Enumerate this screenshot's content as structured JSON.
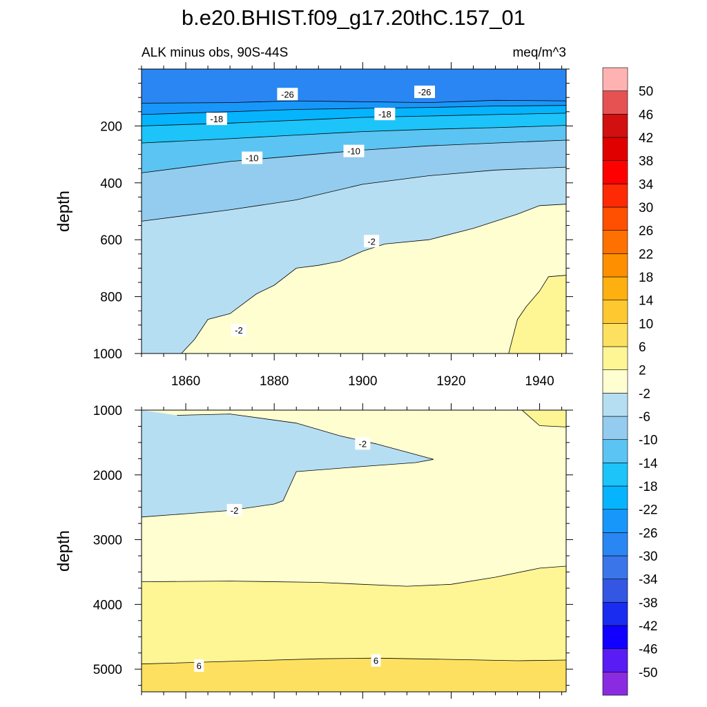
{
  "title": "b.e20.BHIST.f09_g17.20thC.157_01",
  "subtitle_left": "ALK minus obs, 90S-44S",
  "subtitle_right": "meq/m^3",
  "colors": {
    "background": "#ffffff",
    "contour_line": "#000000",
    "label_box": "#ffffff"
  },
  "colorbar": {
    "levels": [
      -50,
      -46,
      -42,
      -38,
      -34,
      -30,
      -26,
      -22,
      -18,
      -14,
      -10,
      -6,
      -2,
      2,
      6,
      10,
      14,
      18,
      22,
      26,
      30,
      34,
      38,
      42,
      46,
      50
    ],
    "labels": [
      "50",
      "46",
      "42",
      "38",
      "34",
      "30",
      "26",
      "22",
      "18",
      "14",
      "10",
      "6",
      "2",
      "-2",
      "-6",
      "-10",
      "-14",
      "-18",
      "-22",
      "-26",
      "-30",
      "-34",
      "-38",
      "-42",
      "-46",
      "-50"
    ],
    "colors_bottom_to_top": [
      "#8a2be2",
      "#5a1cf5",
      "#1100ff",
      "#1a2cf0",
      "#3357e3",
      "#3a75ea",
      "#2a86f2",
      "#1897fb",
      "#05b4fc",
      "#1cc4f9",
      "#5bc4f2",
      "#93ccee",
      "#b6def3",
      "#fefed0",
      "#fef595",
      "#fee060",
      "#fec830",
      "#feb010",
      "#fe9000",
      "#fe7000",
      "#fe5000",
      "#fe2a05",
      "#fe0000",
      "#e00000",
      "#d21010",
      "#e65252",
      "#feb2b2"
    ]
  },
  "chart_data": [
    {
      "type": "contour",
      "panel": "upper",
      "xlim": [
        1850,
        1946
      ],
      "ylim": [
        0,
        1000
      ],
      "y_inverted": true,
      "x_ticks": [
        1860,
        1880,
        1900,
        1920,
        1940
      ],
      "x_tick_labels": [
        "1860",
        "1880",
        "1900",
        "1920",
        "1940"
      ],
      "y_ticks": [
        200,
        400,
        600,
        800,
        1000
      ],
      "y_tick_labels": [
        "200",
        "400",
        "600",
        "800",
        "1000"
      ],
      "ylabel": "depth",
      "regions_top_to_bottom": [
        {
          "range": [
            -30,
            -26
          ],
          "color": "#2a86f2"
        },
        {
          "range": [
            -26,
            -22
          ],
          "color": "#1897fb"
        },
        {
          "range": [
            -22,
            -18
          ],
          "color": "#05b4fc"
        },
        {
          "range": [
            -18,
            -14
          ],
          "color": "#1cc4f9"
        },
        {
          "range": [
            -14,
            -10
          ],
          "color": "#5bc4f2"
        },
        {
          "range": [
            -10,
            -6
          ],
          "color": "#93ccee"
        },
        {
          "range": [
            -6,
            -2
          ],
          "color": "#b6def3"
        },
        {
          "range": [
            -2,
            2
          ],
          "color": "#fefed0"
        },
        {
          "range": [
            2,
            6
          ],
          "color": "#fef595"
        }
      ],
      "contours": [
        {
          "level": -26,
          "x": [
            1850,
            1870,
            1885,
            1900,
            1915,
            1930,
            1946
          ],
          "y": [
            120,
            118,
            112,
            115,
            118,
            110,
            112
          ]
        },
        {
          "level": -22,
          "x": [
            1850,
            1870,
            1885,
            1900,
            1915,
            1930,
            1946
          ],
          "y": [
            160,
            150,
            142,
            138,
            135,
            130,
            128
          ]
        },
        {
          "level": -18,
          "x": [
            1850,
            1870,
            1885,
            1900,
            1915,
            1930,
            1946
          ],
          "y": [
            200,
            190,
            180,
            170,
            165,
            160,
            155
          ]
        },
        {
          "level": -14,
          "x": [
            1850,
            1870,
            1885,
            1900,
            1915,
            1930,
            1946
          ],
          "y": [
            260,
            245,
            232,
            220,
            212,
            206,
            198
          ]
        },
        {
          "level": -10,
          "x": [
            1850,
            1870,
            1885,
            1900,
            1915,
            1930,
            1946
          ],
          "y": [
            365,
            325,
            305,
            285,
            270,
            260,
            250
          ]
        },
        {
          "level": -6,
          "x": [
            1850,
            1870,
            1885,
            1900,
            1915,
            1930,
            1946
          ],
          "y": [
            535,
            495,
            460,
            405,
            375,
            355,
            345
          ]
        },
        {
          "level": -2,
          "x": [
            1859,
            1862,
            1865,
            1870,
            1876,
            1880,
            1885,
            1890,
            1895,
            1900,
            1905,
            1915,
            1925,
            1935,
            1940,
            1946
          ],
          "y": [
            1000,
            950,
            880,
            860,
            790,
            760,
            700,
            690,
            675,
            640,
            615,
            600,
            560,
            510,
            480,
            475
          ]
        },
        {
          "level": 2,
          "x": [
            1933,
            1935,
            1937,
            1940,
            1942,
            1946
          ],
          "y": [
            1000,
            880,
            835,
            780,
            730,
            725
          ]
        }
      ],
      "contour_labels": [
        {
          "text": "-26",
          "x": 1883,
          "y": 88
        },
        {
          "text": "-26",
          "x": 1914,
          "y": 80
        },
        {
          "text": "-18",
          "x": 1867,
          "y": 175
        },
        {
          "text": "-18",
          "x": 1905,
          "y": 158
        },
        {
          "text": "-10",
          "x": 1875,
          "y": 312
        },
        {
          "text": "-10",
          "x": 1898,
          "y": 288
        },
        {
          "text": "-2",
          "x": 1902,
          "y": 605
        },
        {
          "text": "-2",
          "x": 1872,
          "y": 918
        }
      ]
    },
    {
      "type": "contour",
      "panel": "lower",
      "xlim": [
        1850,
        1946
      ],
      "ylim": [
        1000,
        5350
      ],
      "y_inverted": true,
      "x_ticks": [
        1860,
        1880,
        1900,
        1920,
        1940
      ],
      "y_ticks": [
        1000,
        2000,
        3000,
        4000,
        5000
      ],
      "y_tick_labels": [
        "1000",
        "2000",
        "3000",
        "4000",
        "5000"
      ],
      "ylabel": "depth",
      "regions_top_to_bottom": [
        {
          "range": [
            -6,
            -2
          ],
          "color": "#b6def3"
        },
        {
          "range": [
            -2,
            2
          ],
          "color": "#fefed0"
        },
        {
          "range": [
            2,
            6
          ],
          "color": "#fef595"
        },
        {
          "range": [
            6,
            10
          ],
          "color": "#fee060"
        }
      ],
      "contours": [
        {
          "level": -2,
          "x": [
            1858,
            1870,
            1885,
            1895,
            1903,
            1916,
            1912,
            1900,
            1885,
            1882,
            1880,
            1870,
            1860,
            1850
          ],
          "y": [
            1080,
            1060,
            1200,
            1400,
            1520,
            1760,
            1810,
            1870,
            1950,
            2400,
            2450,
            2550,
            2600,
            2650
          ]
        },
        {
          "level": 2,
          "x": [
            1850,
            1870,
            1890,
            1910,
            1920,
            1930,
            1940,
            1946
          ],
          "y": [
            3650,
            3640,
            3660,
            3720,
            3690,
            3580,
            3440,
            3410
          ]
        },
        {
          "level": 2,
          "x": [
            1936,
            1940,
            1946
          ],
          "y": [
            1000,
            1240,
            1260
          ]
        },
        {
          "level": 6,
          "x": [
            1850,
            1870,
            1890,
            1903,
            1920,
            1935,
            1946
          ],
          "y": [
            4920,
            4880,
            4840,
            4830,
            4850,
            4870,
            4860
          ]
        }
      ],
      "contour_labels": [
        {
          "text": "-2",
          "x": 1900,
          "y": 1515
        },
        {
          "text": "-2",
          "x": 1871,
          "y": 2545
        },
        {
          "text": "6",
          "x": 1863,
          "y": 4945
        },
        {
          "text": "6",
          "x": 1903,
          "y": 4865
        }
      ]
    }
  ]
}
